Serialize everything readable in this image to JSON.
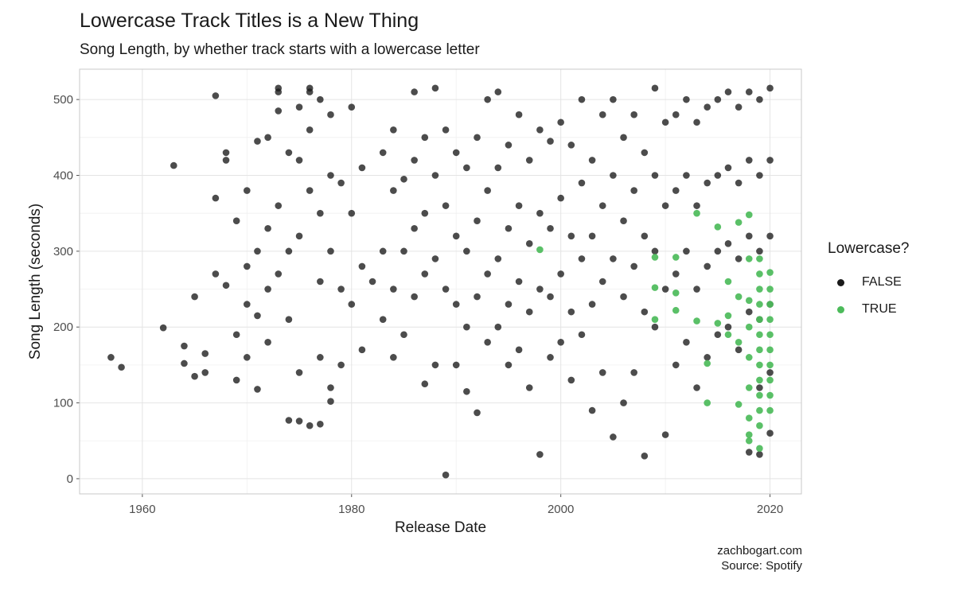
{
  "chart_data": {
    "type": "scatter",
    "title": "Lowercase Track Titles is a New Thing",
    "subtitle": "Song Length, by whether track starts with a lowercase letter",
    "xlabel": "Release Date",
    "ylabel": "Song Length (seconds)",
    "xlim": [
      1954,
      2023
    ],
    "ylim": [
      -20,
      540
    ],
    "x_ticks": [
      1960,
      1980,
      2000,
      2020
    ],
    "y_ticks": [
      0,
      100,
      200,
      300,
      400,
      500
    ],
    "grid": true,
    "legend": {
      "title": "Lowercase?",
      "placement": "right",
      "entries": [
        {
          "label": "FALSE",
          "color": "#1a1a1a"
        },
        {
          "label": "TRUE",
          "color": "#4cbb5a"
        }
      ]
    },
    "series": [
      {
        "label": "FALSE",
        "color": "#1a1a1a",
        "points": [
          [
            1957,
            160
          ],
          [
            1958,
            147
          ],
          [
            1962,
            199
          ],
          [
            1963,
            413
          ],
          [
            1964,
            175
          ],
          [
            1964,
            152
          ],
          [
            1965,
            240
          ],
          [
            1965,
            135
          ],
          [
            1966,
            165
          ],
          [
            1966,
            140
          ],
          [
            1967,
            505
          ],
          [
            1967,
            370
          ],
          [
            1967,
            270
          ],
          [
            1968,
            430
          ],
          [
            1968,
            420
          ],
          [
            1968,
            255
          ],
          [
            1969,
            340
          ],
          [
            1969,
            190
          ],
          [
            1969,
            130
          ],
          [
            1970,
            380
          ],
          [
            1970,
            280
          ],
          [
            1970,
            230
          ],
          [
            1970,
            160
          ],
          [
            1971,
            445
          ],
          [
            1971,
            300
          ],
          [
            1971,
            215
          ],
          [
            1971,
            118
          ],
          [
            1972,
            450
          ],
          [
            1972,
            330
          ],
          [
            1972,
            250
          ],
          [
            1972,
            180
          ],
          [
            1973,
            515
          ],
          [
            1973,
            510
          ],
          [
            1973,
            485
          ],
          [
            1973,
            360
          ],
          [
            1973,
            270
          ],
          [
            1974,
            430
          ],
          [
            1974,
            300
          ],
          [
            1974,
            210
          ],
          [
            1974,
            77
          ],
          [
            1975,
            490
          ],
          [
            1975,
            420
          ],
          [
            1975,
            320
          ],
          [
            1975,
            140
          ],
          [
            1975,
            76
          ],
          [
            1976,
            515
          ],
          [
            1976,
            510
          ],
          [
            1976,
            460
          ],
          [
            1976,
            380
          ],
          [
            1976,
            70
          ],
          [
            1977,
            500
          ],
          [
            1977,
            350
          ],
          [
            1977,
            260
          ],
          [
            1977,
            160
          ],
          [
            1977,
            72
          ],
          [
            1978,
            480
          ],
          [
            1978,
            400
          ],
          [
            1978,
            300
          ],
          [
            1978,
            120
          ],
          [
            1978,
            102
          ],
          [
            1979,
            390
          ],
          [
            1979,
            250
          ],
          [
            1979,
            150
          ],
          [
            1980,
            490
          ],
          [
            1980,
            350
          ],
          [
            1980,
            230
          ],
          [
            1981,
            410
          ],
          [
            1981,
            280
          ],
          [
            1981,
            170
          ],
          [
            1982,
            260
          ],
          [
            1983,
            430
          ],
          [
            1983,
            300
          ],
          [
            1983,
            210
          ],
          [
            1984,
            460
          ],
          [
            1984,
            380
          ],
          [
            1984,
            250
          ],
          [
            1984,
            160
          ],
          [
            1985,
            395
          ],
          [
            1985,
            300
          ],
          [
            1985,
            190
          ],
          [
            1986,
            510
          ],
          [
            1986,
            420
          ],
          [
            1986,
            330
          ],
          [
            1986,
            240
          ],
          [
            1987,
            450
          ],
          [
            1987,
            350
          ],
          [
            1987,
            270
          ],
          [
            1987,
            125
          ],
          [
            1988,
            515
          ],
          [
            1988,
            400
          ],
          [
            1988,
            290
          ],
          [
            1988,
            150
          ],
          [
            1989,
            460
          ],
          [
            1989,
            360
          ],
          [
            1989,
            250
          ],
          [
            1989,
            5
          ],
          [
            1990,
            430
          ],
          [
            1990,
            320
          ],
          [
            1990,
            230
          ],
          [
            1990,
            150
          ],
          [
            1991,
            410
          ],
          [
            1991,
            300
          ],
          [
            1991,
            200
          ],
          [
            1991,
            115
          ],
          [
            1992,
            450
          ],
          [
            1992,
            340
          ],
          [
            1992,
            240
          ],
          [
            1992,
            87
          ],
          [
            1993,
            500
          ],
          [
            1993,
            380
          ],
          [
            1993,
            270
          ],
          [
            1993,
            180
          ],
          [
            1994,
            510
          ],
          [
            1994,
            410
          ],
          [
            1994,
            290
          ],
          [
            1994,
            200
          ],
          [
            1995,
            440
          ],
          [
            1995,
            330
          ],
          [
            1995,
            230
          ],
          [
            1995,
            150
          ],
          [
            1996,
            480
          ],
          [
            1996,
            360
          ],
          [
            1996,
            260
          ],
          [
            1996,
            170
          ],
          [
            1997,
            420
          ],
          [
            1997,
            310
          ],
          [
            1997,
            220
          ],
          [
            1997,
            120
          ],
          [
            1998,
            460
          ],
          [
            1998,
            350
          ],
          [
            1998,
            250
          ],
          [
            1998,
            32
          ],
          [
            1999,
            445
          ],
          [
            1999,
            330
          ],
          [
            1999,
            240
          ],
          [
            1999,
            160
          ],
          [
            2000,
            470
          ],
          [
            2000,
            370
          ],
          [
            2000,
            270
          ],
          [
            2000,
            180
          ],
          [
            2001,
            440
          ],
          [
            2001,
            320
          ],
          [
            2001,
            220
          ],
          [
            2001,
            130
          ],
          [
            2002,
            500
          ],
          [
            2002,
            390
          ],
          [
            2002,
            290
          ],
          [
            2002,
            190
          ],
          [
            2003,
            420
          ],
          [
            2003,
            320
          ],
          [
            2003,
            230
          ],
          [
            2003,
            90
          ],
          [
            2004,
            480
          ],
          [
            2004,
            360
          ],
          [
            2004,
            260
          ],
          [
            2004,
            140
          ],
          [
            2005,
            500
          ],
          [
            2005,
            400
          ],
          [
            2005,
            290
          ],
          [
            2005,
            55
          ],
          [
            2006,
            450
          ],
          [
            2006,
            340
          ],
          [
            2006,
            240
          ],
          [
            2006,
            100
          ],
          [
            2007,
            480
          ],
          [
            2007,
            380
          ],
          [
            2007,
            280
          ],
          [
            2007,
            140
          ],
          [
            2008,
            430
          ],
          [
            2008,
            320
          ],
          [
            2008,
            220
          ],
          [
            2008,
            30
          ],
          [
            2009,
            515
          ],
          [
            2009,
            400
          ],
          [
            2009,
            300
          ],
          [
            2009,
            200
          ],
          [
            2010,
            470
          ],
          [
            2010,
            360
          ],
          [
            2010,
            250
          ],
          [
            2010,
            58
          ],
          [
            2011,
            480
          ],
          [
            2011,
            380
          ],
          [
            2011,
            270
          ],
          [
            2011,
            150
          ],
          [
            2012,
            500
          ],
          [
            2012,
            400
          ],
          [
            2012,
            300
          ],
          [
            2012,
            180
          ],
          [
            2013,
            470
          ],
          [
            2013,
            360
          ],
          [
            2013,
            250
          ],
          [
            2013,
            120
          ],
          [
            2014,
            490
          ],
          [
            2014,
            390
          ],
          [
            2014,
            280
          ],
          [
            2014,
            160
          ],
          [
            2015,
            500
          ],
          [
            2015,
            400
          ],
          [
            2015,
            300
          ],
          [
            2015,
            190
          ],
          [
            2016,
            510
          ],
          [
            2016,
            410
          ],
          [
            2016,
            310
          ],
          [
            2016,
            200
          ],
          [
            2017,
            490
          ],
          [
            2017,
            390
          ],
          [
            2017,
            290
          ],
          [
            2017,
            170
          ],
          [
            2018,
            510
          ],
          [
            2018,
            420
          ],
          [
            2018,
            320
          ],
          [
            2018,
            220
          ],
          [
            2018,
            35
          ],
          [
            2019,
            500
          ],
          [
            2019,
            400
          ],
          [
            2019,
            300
          ],
          [
            2019,
            210
          ],
          [
            2019,
            120
          ],
          [
            2019,
            32
          ],
          [
            2020,
            515
          ],
          [
            2020,
            420
          ],
          [
            2020,
            320
          ],
          [
            2020,
            230
          ],
          [
            2020,
            140
          ],
          [
            2020,
            60
          ]
        ]
      },
      {
        "label": "TRUE",
        "color": "#4cbb5a",
        "points": [
          [
            1998,
            302
          ],
          [
            2009,
            292
          ],
          [
            2009,
            252
          ],
          [
            2009,
            210
          ],
          [
            2011,
            292
          ],
          [
            2011,
            245
          ],
          [
            2011,
            222
          ],
          [
            2013,
            350
          ],
          [
            2013,
            208
          ],
          [
            2014,
            152
          ],
          [
            2014,
            100
          ],
          [
            2015,
            332
          ],
          [
            2015,
            205
          ],
          [
            2016,
            260
          ],
          [
            2016,
            215
          ],
          [
            2016,
            190
          ],
          [
            2017,
            338
          ],
          [
            2017,
            240
          ],
          [
            2017,
            180
          ],
          [
            2017,
            98
          ],
          [
            2018,
            348
          ],
          [
            2018,
            290
          ],
          [
            2018,
            235
          ],
          [
            2018,
            200
          ],
          [
            2018,
            160
          ],
          [
            2018,
            120
          ],
          [
            2018,
            80
          ],
          [
            2018,
            58
          ],
          [
            2018,
            50
          ],
          [
            2019,
            290
          ],
          [
            2019,
            270
          ],
          [
            2019,
            250
          ],
          [
            2019,
            230
          ],
          [
            2019,
            210
          ],
          [
            2019,
            190
          ],
          [
            2019,
            170
          ],
          [
            2019,
            150
          ],
          [
            2019,
            130
          ],
          [
            2019,
            110
          ],
          [
            2019,
            90
          ],
          [
            2019,
            70
          ],
          [
            2019,
            40
          ],
          [
            2020,
            272
          ],
          [
            2020,
            250
          ],
          [
            2020,
            230
          ],
          [
            2020,
            210
          ],
          [
            2020,
            190
          ],
          [
            2020,
            170
          ],
          [
            2020,
            150
          ],
          [
            2020,
            130
          ],
          [
            2020,
            110
          ],
          [
            2020,
            90
          ]
        ]
      }
    ]
  },
  "caption": {
    "line1": "zachbogart.com",
    "line2": "Source: Spotify"
  }
}
